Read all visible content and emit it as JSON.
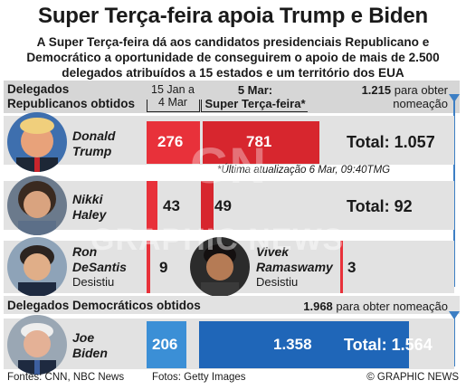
{
  "title": "Super Terça-feira apoia Trump e Biden",
  "subtitle": "A Super Terça-feira dá aos candidatos presidenciais Republicano e Democrático a oportunidade de conseguirem o apoio de mais de 2.500 delegados atribuídos a 15 estados e um território dos EUA",
  "header": {
    "rep_label_line1": "Delegados",
    "rep_label_line2": "Republicanos obtidos",
    "period1_line1": "15 Jan a",
    "period1_line2": "4 Mar",
    "period2_line1": "5 Mar:",
    "period2_line2": "Super Terça-feira*",
    "rep_threshold_value": "1.215",
    "rep_threshold_text1": " para obter",
    "rep_threshold_text2": "nomeação"
  },
  "note": "*Última atualização 6 Mar, 09:40TMG",
  "dem_label": "Delegados Democráticos obtidos",
  "dem_threshold_value": "1.968",
  "dem_threshold_text": " para obter nomeação",
  "candidates": {
    "trump": {
      "name_line1": "Donald",
      "name_line2": "Trump",
      "pre": "276",
      "super": "781",
      "total": "Total: 1.057"
    },
    "haley": {
      "name_line1": "Nikki",
      "name_line2": "Haley",
      "pre": "43",
      "super": "49",
      "total": "Total: 92"
    },
    "desantis": {
      "name_line1": "Ron",
      "name_line2": "DeSantis",
      "status": "Desistiu",
      "pre": "9"
    },
    "ramaswamy": {
      "name_line1": "Vivek",
      "name_line2": "Ramaswamy",
      "status": "Desistiu",
      "pre": "3"
    },
    "biden": {
      "name_line1": "Joe",
      "name_line2": "Biden",
      "pre": "206",
      "super": "1.358",
      "total": "Total: 1.564"
    }
  },
  "footer": {
    "sources": "Fontes: CNN, NBC News",
    "photos": "Fotos: Getty Images",
    "credit": "© GRAPHIC NEWS"
  },
  "watermark": "GRAPHIC NEWS",
  "colors": {
    "rep_dark": "#d7262e",
    "rep_light": "#e8313a",
    "dem_light": "#3b8fd6",
    "dem_dark": "#1f66b8",
    "band": "#e2e2e2"
  },
  "chart_data": {
    "type": "bar",
    "groups": [
      {
        "party": "Republicano",
        "threshold": 1215,
        "series": [
          {
            "name": "15 Jan a 4 Mar",
            "values": {
              "Donald Trump": 276,
              "Nikki Haley": 43,
              "Ron DeSantis": 9,
              "Vivek Ramaswamy": 3
            }
          },
          {
            "name": "5 Mar: Super Terça-feira*",
            "values": {
              "Donald Trump": 781,
              "Nikki Haley": 49
            }
          }
        ],
        "totals": {
          "Donald Trump": 1057,
          "Nikki Haley": 92
        }
      },
      {
        "party": "Democrático",
        "threshold": 1968,
        "series": [
          {
            "name": "15 Jan a 4 Mar",
            "values": {
              "Joe Biden": 206
            }
          },
          {
            "name": "5 Mar: Super Terça-feira*",
            "values": {
              "Joe Biden": 1358
            }
          }
        ],
        "totals": {
          "Joe Biden": 1564
        }
      }
    ]
  }
}
